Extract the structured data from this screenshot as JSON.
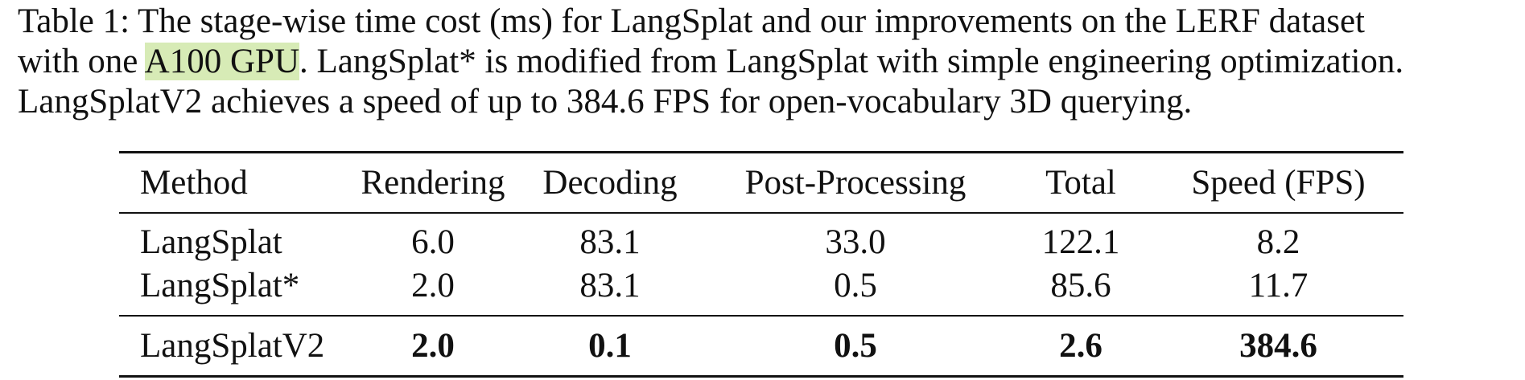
{
  "caption": {
    "line1": "Table 1: The stage-wise time cost (ms) for LangSplat and our improvements on the LERF dataset",
    "line2_pre": "with one ",
    "line2_highlight": "A100 GPU",
    "line2_post": ". LangSplat* is modified from LangSplat with simple engineering optimization.",
    "line3": "LangSplatV2 achieves a speed of up to 384.6 FPS for open-vocabulary 3D querying."
  },
  "colors": {
    "highlight": "#d7ebb6",
    "text": "#111111"
  },
  "table": {
    "headers": [
      "Method",
      "Rendering",
      "Decoding",
      "Post-Processing",
      "Total",
      "Speed (FPS)"
    ],
    "rows": [
      [
        "LangSplat",
        "6.0",
        "83.1",
        "33.0",
        "122.1",
        "8.2"
      ],
      [
        "LangSplat*",
        "2.0",
        "83.1",
        "0.5",
        "85.6",
        "11.7"
      ],
      [
        "LangSplatV2",
        "2.0",
        "0.1",
        "0.5",
        "2.6",
        "384.6"
      ]
    ]
  }
}
